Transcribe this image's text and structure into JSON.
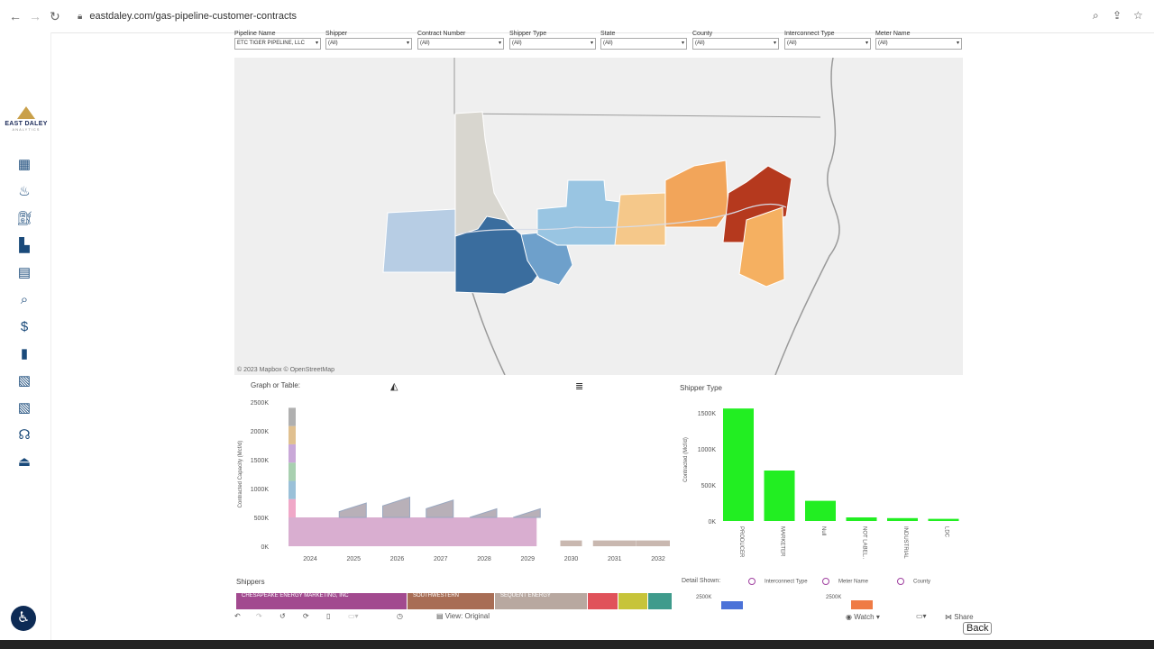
{
  "browser": {
    "url": "eastdaley.com/gas-pipeline-customer-contracts"
  },
  "brand": {
    "line1": "EAST DALEY",
    "line2": "ANALYTICS"
  },
  "filters": [
    {
      "label": "Pipeline Name",
      "value": "ETC TIGER PIPELINE, LLC"
    },
    {
      "label": "Shipper",
      "value": "(All)"
    },
    {
      "label": "Contract Number",
      "value": "(All)"
    },
    {
      "label": "Shipper Type",
      "value": "(All)"
    },
    {
      "label": "State",
      "value": "(All)"
    },
    {
      "label": "County",
      "value": "(All)"
    },
    {
      "label": "Interconnect Type",
      "value": "(All)"
    },
    {
      "label": "Meter Name",
      "value": "(All)"
    }
  ],
  "map": {
    "credit": "© 2023 Mapbox © OpenStreetMap"
  },
  "graph": {
    "label": "Graph or Table:"
  },
  "shipper_type": {
    "label": "Shipper Type"
  },
  "shippers": {
    "label": "Shippers",
    "bars": [
      {
        "label": "CHESAPEAKE ENERGY MARKETING, INC",
        "color": "#a24a8f"
      },
      {
        "label": "SOUTHWESTERN",
        "color": "#a86d55"
      },
      {
        "label": "SEQUENT ENERGY",
        "color": "#b8a8a0"
      },
      {
        "label": "",
        "color": "#e0525a"
      },
      {
        "label": "",
        "color": "#c7c43a"
      },
      {
        "label": "",
        "color": "#3f9b8c"
      }
    ]
  },
  "detail": {
    "label": "Detail Shown:",
    "options": [
      "Interconnect Type",
      "Meter Name",
      "County"
    ],
    "ytick_left": "2500K",
    "ytick_right": "2500K"
  },
  "toolbar": {
    "view": "View: Original",
    "watch": "Watch",
    "share": "Share"
  },
  "back_label": "Back",
  "chart_data": [
    {
      "type": "area",
      "title": "",
      "ylabel": "Contracted Capacity (Mcf/d)",
      "x": [
        "2024",
        "2025",
        "2026",
        "2027",
        "2028",
        "2029",
        "2030",
        "2031",
        "2032"
      ],
      "yticks": [
        "2500K",
        "2000K",
        "1500K",
        "1000K",
        "500K",
        "0K"
      ],
      "ylim": [
        0,
        2500000
      ],
      "series": [
        {
          "values": [
            2400000,
            600000,
            700000,
            650000,
            500000,
            500000,
            100000,
            100000,
            100000
          ]
        }
      ]
    },
    {
      "type": "bar",
      "ylabel": "Contracted (Mcf/d)",
      "categories": [
        "PRODUCER",
        "MARKETER",
        "Null",
        "NOT LABEL...",
        "INDUSTRIAL",
        "LDC"
      ],
      "values": [
        1560000,
        700000,
        280000,
        50000,
        40000,
        30000
      ],
      "yticks": [
        "1500K",
        "1000K",
        "500K",
        "0K"
      ],
      "ylim": [
        0,
        1600000
      ],
      "color": "#22ee22"
    }
  ]
}
